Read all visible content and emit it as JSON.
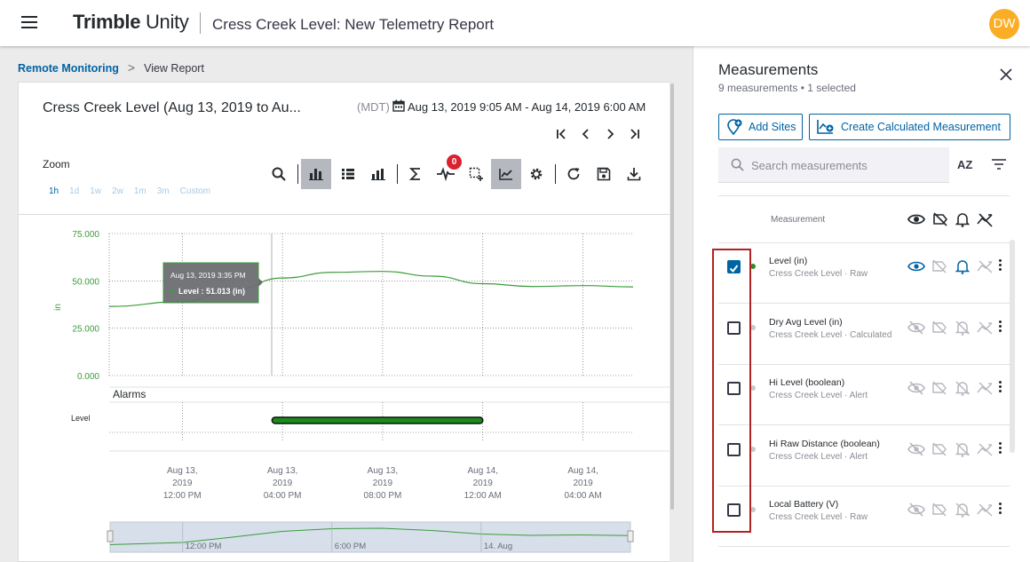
{
  "app": {
    "brand_bold": "Trimble",
    "brand_light": " Unity",
    "title": "Cress Creek Level: New Telemetry Report",
    "avatar_initials": "DW",
    "avatar_color": "#fbad26"
  },
  "breadcrumb": {
    "link": "Remote Monitoring",
    "separator": ">",
    "current": "View Report"
  },
  "report": {
    "title": "Cress Creek Level (Aug 13, 2019 to Au...",
    "timezone": "(MDT)",
    "date_range": "Aug 13, 2019 9:05 AM - Aug 14, 2019 6:00 AM",
    "zoom_label": "Zoom",
    "zoom_options": [
      "1h",
      "1d",
      "1w",
      "2w",
      "1m",
      "3m",
      "Custom"
    ],
    "zoom_active": "1h",
    "events_badge": "0",
    "icons": {
      "nav": [
        "first-page-icon",
        "previous-icon",
        "next-icon",
        "last-page-icon"
      ],
      "toolbar": [
        "search-icon",
        "bar-chart-icon",
        "list-view-icon",
        "grouped-bar-icon",
        "sum-icon",
        "events-icon",
        "box-select-icon",
        "line-chart-icon",
        "settings-icon",
        "refresh-icon",
        "save-icon",
        "download-icon"
      ]
    }
  },
  "chart_data": {
    "type": "line",
    "ylabel": "in",
    "yticks": [
      "75.000",
      "50.000",
      "25.000",
      "0.000"
    ],
    "ylim": [
      0,
      75
    ],
    "grid": true,
    "x_tick_labels": [
      [
        "Aug 13,",
        "2019",
        "12:00 PM"
      ],
      [
        "Aug 13,",
        "2019",
        "04:00 PM"
      ],
      [
        "Aug 13,",
        "2019",
        "08:00 PM"
      ],
      [
        "Aug 14,",
        "2019",
        "12:00 AM"
      ],
      [
        "Aug 14,",
        "2019",
        "04:00 AM"
      ]
    ],
    "series": [
      {
        "name": "Level",
        "color": "#3b9c3b",
        "x": [
          "Aug 13, 2019 9:05 AM",
          "Aug 13, 2019 12:00 PM",
          "Aug 13, 2019 2:00 PM",
          "Aug 13, 2019 4:00 PM",
          "Aug 13, 2019 6:00 PM",
          "Aug 13, 2019 8:00 PM",
          "Aug 13, 2019 10:00 PM",
          "Aug 14, 2019 12:00 AM",
          "Aug 14, 2019 2:00 AM",
          "Aug 14, 2019 4:00 AM",
          "Aug 14, 2019 6:00 AM"
        ],
        "values": [
          36.5,
          39.0,
          45.0,
          51.5,
          54.5,
          55.0,
          52.5,
          48.5,
          47.0,
          47.5,
          46.8
        ]
      }
    ],
    "tooltip": {
      "time": "Aug 13, 2019 3:35 PM",
      "label": "Level : 51.013 (in)"
    },
    "alarms": {
      "title": "Alarms",
      "row_label": "Level",
      "bar_start": "Aug 13, 2019 3:35 PM",
      "bar_end": "Aug 14, 2019 12:00 AM",
      "bar_color": "#1a8a1a"
    },
    "navigator_labels": [
      "12:00 PM",
      "6:00 PM",
      "14. Aug"
    ]
  },
  "panel": {
    "title": "Measurements",
    "subtitle": "9 measurements • 1 selected",
    "add_sites": "Add Sites",
    "create_calc": "Create Calculated Measurement",
    "search_placeholder": "Search measurements",
    "sort_label": "AZ",
    "column_header": "Measurement",
    "items": [
      {
        "name": "Level (in)",
        "sub": "Cress Creek Level · Raw",
        "checked": true,
        "dot": "#2e8b2e",
        "active": true
      },
      {
        "name": "Dry Avg Level (in)",
        "sub": "Cress Creek Level · Calculated",
        "checked": false,
        "dot": "#c8c8c8",
        "active": false
      },
      {
        "name": "Hi Level (boolean)",
        "sub": "Cress Creek Level · Alert",
        "checked": false,
        "dot": "#c8c8c8",
        "active": false
      },
      {
        "name": "Hi Raw Distance (boolean)",
        "sub": "Cress Creek Level · Alert",
        "checked": false,
        "dot": "#c8c8c8",
        "active": false
      },
      {
        "name": "Local Battery (V)",
        "sub": "Cress Creek Level · Raw",
        "checked": false,
        "dot": "#c8c8c8",
        "active": false
      }
    ]
  }
}
